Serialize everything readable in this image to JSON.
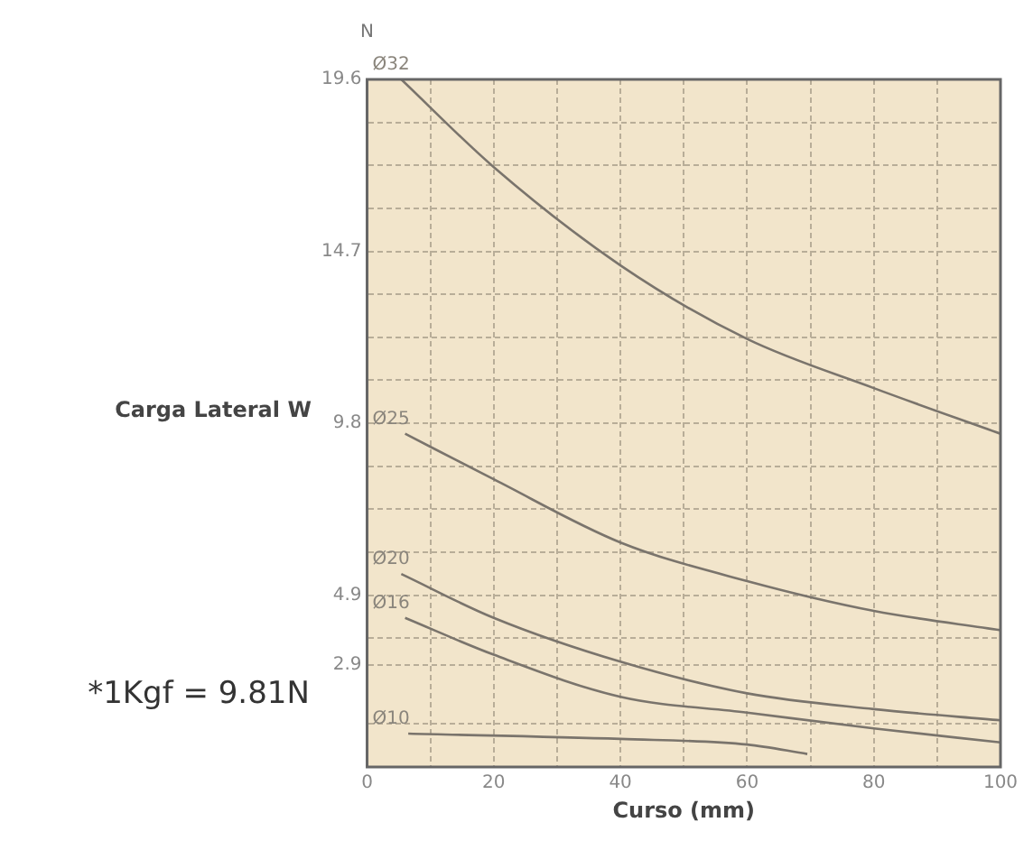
{
  "chart_data": {
    "type": "line",
    "xlabel": "Curso (mm)",
    "ylabel": "Carga Lateral W",
    "annotations": [
      "N",
      "*1Kgf = 9.81N"
    ],
    "xlim": [
      0,
      100
    ],
    "ylim": [
      0,
      19.6
    ],
    "xticks": [
      0,
      {
        "value": 10,
        "label": null
      },
      20,
      {
        "value": 30,
        "label": null
      },
      40,
      {
        "value": 50,
        "label": null
      },
      60,
      {
        "value": 70,
        "label": null
      },
      80,
      {
        "value": 90,
        "label": null
      },
      100
    ],
    "yticks": [
      {
        "value": 0,
        "label": null
      },
      {
        "value": 1.225,
        "label": null
      },
      2.9,
      {
        "value": 3.675,
        "label": null
      },
      4.9,
      {
        "value": 6.125,
        "label": null
      },
      {
        "value": 7.35,
        "label": null
      },
      {
        "value": 8.575,
        "label": null
      },
      9.8,
      {
        "value": 11.025,
        "label": null
      },
      {
        "value": 12.25,
        "label": null
      },
      {
        "value": 13.475,
        "label": null
      },
      14.7,
      {
        "value": 15.925,
        "label": null
      },
      {
        "value": 17.15,
        "label": null
      },
      {
        "value": 18.375,
        "label": null
      },
      19.6
    ],
    "grid": true,
    "legend": false,
    "marker": "none",
    "line_style": "solid",
    "tick_labels": "xy",
    "series": [
      {
        "name": "Ø32",
        "color": "#7a746c",
        "x": [
          5.4,
          20,
          40,
          60,
          80,
          100
        ],
        "values": [
          19.6,
          17.1,
          14.3,
          12.2,
          10.8,
          9.5
        ]
      },
      {
        "name": "Ø25",
        "color": "#7a746c",
        "x": [
          6,
          20,
          40,
          60,
          80,
          100
        ],
        "values": [
          9.5,
          8.2,
          6.4,
          5.3,
          4.45,
          3.9
        ]
      },
      {
        "name": "Ø20",
        "color": "#7a746c",
        "x": [
          5.4,
          20,
          40,
          60,
          80,
          100
        ],
        "values": [
          5.5,
          4.25,
          3.0,
          2.1,
          1.65,
          1.33
        ]
      },
      {
        "name": "Ø16",
        "color": "#7a746c",
        "x": [
          6,
          20,
          40,
          60,
          80,
          100
        ],
        "values": [
          4.25,
          3.2,
          2.0,
          1.55,
          1.1,
          0.7
        ]
      },
      {
        "name": "Ø10",
        "color": "#7a746c",
        "x": [
          6.5,
          40,
          60,
          69.5
        ],
        "values": [
          0.95,
          0.8,
          0.64,
          0.37
        ]
      }
    ]
  }
}
